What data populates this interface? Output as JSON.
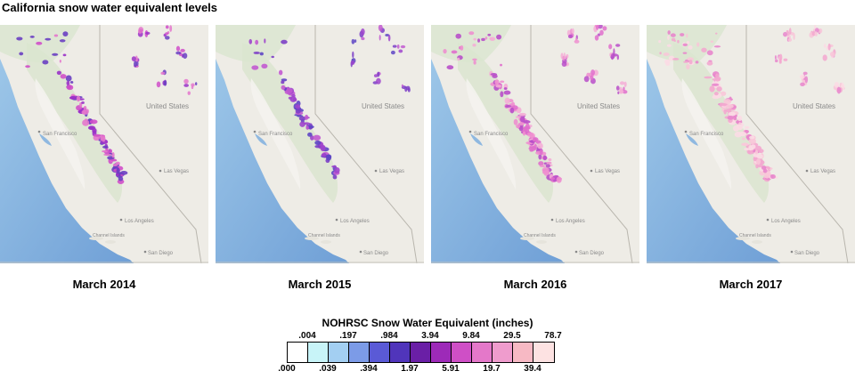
{
  "title": "California snow water equivalent levels",
  "maps": [
    {
      "caption": "March 2014",
      "snow_level": 1,
      "snow_extent": 0.45,
      "palette": [
        "#d04fc9",
        "#9a32c8",
        "#6a3fc2",
        "#e477cc"
      ]
    },
    {
      "caption": "March 2015",
      "snow_level": 0,
      "snow_extent": 0.25,
      "palette": [
        "#7d3fc7",
        "#5e46c4",
        "#9f45cc",
        "#c25ad0"
      ]
    },
    {
      "caption": "March 2016",
      "snow_level": 2,
      "snow_extent": 0.75,
      "palette": [
        "#ee8fcf",
        "#e06fcc",
        "#f4aed6",
        "#b84fc9"
      ]
    },
    {
      "caption": "March 2017",
      "snow_level": 3,
      "snow_extent": 1.0,
      "palette": [
        "#f8c6d8",
        "#f3a8cf",
        "#fbdbe4",
        "#e886cc"
      ]
    }
  ],
  "place_labels": {
    "united_states": "United States",
    "san_francisco": "San Francisco",
    "las_vegas": "Las Vegas",
    "los_angeles": "Los Angeles",
    "san_diego": "San Diego",
    "channel_islands": "Channel Islands"
  },
  "legend": {
    "title": "NOHRSC Snow Water Equivalent (inches)",
    "colors": [
      "#ffffff",
      "#c8f4f8",
      "#a3cff2",
      "#7c9be7",
      "#5a5ad6",
      "#5035bb",
      "#6a1fa6",
      "#9d2ab8",
      "#cf4fc6",
      "#e478c9",
      "#ef9ccd",
      "#f7b9c4",
      "#fde2e2"
    ],
    "top_ticks": [
      ".004",
      ".197",
      ".984",
      "3.94",
      "9.84",
      "29.5",
      "78.7"
    ],
    "bottom_ticks": [
      ".000",
      ".039",
      ".394",
      "1.97",
      "5.91",
      "19.7",
      "39.4"
    ]
  }
}
